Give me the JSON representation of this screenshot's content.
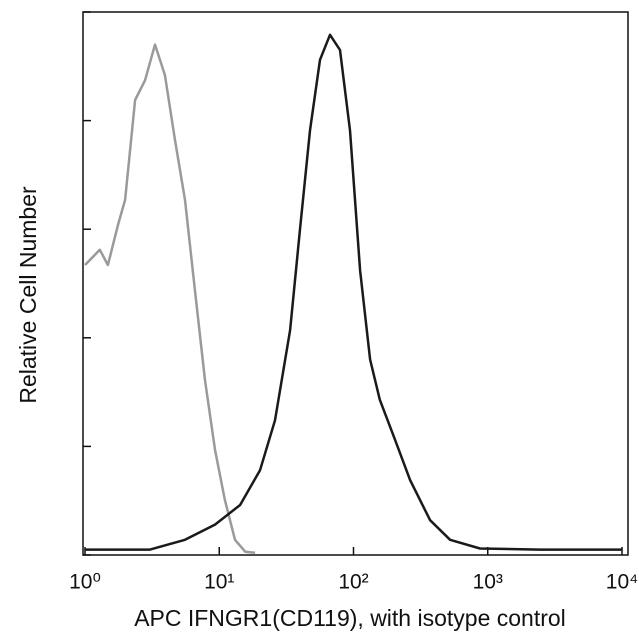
{
  "chart_data": {
    "type": "line",
    "x_label": "APC IFNGR1(CD119), with isotype control",
    "y_label": "Relative Cell Number",
    "xscale": "log",
    "xlim": [
      1,
      10000
    ],
    "xticks": [
      {
        "value": 1,
        "label": "10⁰"
      },
      {
        "value": 10,
        "label": "10¹"
      },
      {
        "value": 100,
        "label": "10²"
      },
      {
        "value": 1000,
        "label": "10³"
      },
      {
        "value": 10000,
        "label": "10⁴"
      }
    ],
    "ylim": [
      0,
      5
    ],
    "yticks": [
      0,
      1,
      2,
      3,
      4,
      5
    ],
    "series": [
      {
        "color": "#9a9a9a",
        "x": [
          1,
          1.29,
          1.48,
          1.76,
          1.99,
          2.36,
          2.8,
          3.32,
          3.94,
          4.68,
          5.56,
          6.59,
          7.83,
          9.3,
          11,
          13.1,
          15.6,
          18.5
        ],
        "values": [
          2.67,
          2.81,
          2.67,
          3.04,
          3.27,
          4.19,
          4.37,
          4.7,
          4.42,
          3.82,
          3.27,
          2.44,
          1.61,
          0.97,
          0.51,
          0.14,
          0.03,
          0.02
        ]
      },
      {
        "color": "#1a1a1a",
        "x": [
          1,
          3.05,
          5.56,
          9.3,
          14.3,
          20.1,
          26,
          33.7,
          39.9,
          47.4,
          56.3,
          66.8,
          79.3,
          94.1,
          112,
          133,
          157,
          204,
          264,
          372,
          524,
          875,
          2449,
          10000
        ],
        "values": [
          0.05,
          0.05,
          0.14,
          0.28,
          0.46,
          0.78,
          1.24,
          2.07,
          2.99,
          3.91,
          4.56,
          4.79,
          4.65,
          3.91,
          2.62,
          1.8,
          1.43,
          1.06,
          0.69,
          0.32,
          0.14,
          0.06,
          0.05,
          0.05
        ]
      }
    ]
  }
}
